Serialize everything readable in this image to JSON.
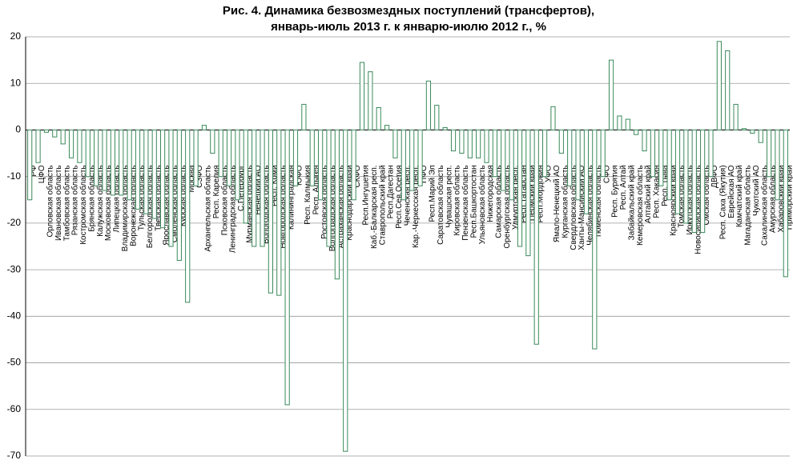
{
  "chart_data": {
    "type": "bar",
    "title": [
      "Рис. 4. Динамика безвозмездных поступлений (трансфертов),",
      "январь-июль 2013 г. к январю-июлю 2012 г., %"
    ],
    "categories": [
      "РФ",
      "ЦФО",
      "Орловская область",
      "Ивановская область",
      "Тамбовская область",
      "Рязанская область",
      "Костромская область",
      "Брянская область",
      "Калужская область",
      "Московская область",
      "Липецкая область",
      "Владимирская область",
      "Воронежская область",
      "Тульская область",
      "Белгородская область",
      "Тверская область",
      "Ярославская область",
      "Смоленская область",
      "Курская область",
      "Москва",
      "СЗФО",
      "Архангельская область",
      "Респ. Карелия",
      "Псковская область",
      "Ленинградская область",
      "С.Петербург",
      "Мурманская область",
      "Ненецкий АО",
      "Вологодская область",
      "Респ. Коми",
      "Новгородская область",
      "Калининградская",
      "ЮФО",
      "Респ. Калмыкия",
      "Респ. Адыгея",
      "Ростовская область",
      "Волгоградская область",
      "Астраханская область",
      "Краснодарский край",
      "СКФО",
      "Респ.Ингушетия",
      "Каб.-Балкарская респ.",
      "Ставропольский край",
      "Респ.Дагестан",
      "Респ.Сев.Осетия",
      "Чеченская респ.",
      "Кар.-Черкесская респ.",
      "ПФО",
      "Респ.Марий Эл",
      "Саратовская область",
      "Чувашская респ.",
      "Кировская область",
      "Пензенская область",
      "Респ.Башкортостан",
      "Ульяновская область",
      "Нижегородская",
      "Самарская область",
      "Оренбургская область",
      "Удмуртская респ.",
      "Респ.Татарстан",
      "Пермский край",
      "Респ.Мордовия",
      "УФО",
      "Ямало-Ненецкий АО",
      "Курганская область",
      "Свердловская область",
      "Ханты-Мансийский АО",
      "Челябинская область",
      "Тюменская область",
      "СФО",
      "Респ. Бурятия",
      "Респ. Алтай",
      "Забайкальский край",
      "Кемеровская область",
      "Алтайский край",
      "Респ. Хакасия",
      "Респ. Тыва",
      "Красноярский край",
      "Томская область",
      "Иркутская область",
      "Новосибирская область",
      "Омская область",
      "ДВФО",
      "Респ. Саха (Якутия)",
      "Еврейская АО",
      "Камчатский край",
      "Магаданская область",
      "Чукотский АО",
      "Сахалинская область",
      "Амурская область",
      "Хабаровский край",
      "Приморский край"
    ],
    "values": [
      -15,
      -7,
      -0.5,
      -1.5,
      -3,
      -6,
      -7,
      -10,
      -12,
      -13,
      -14,
      -14,
      -15,
      -17,
      -18,
      -19,
      -21,
      -25,
      -28,
      -37,
      -12,
      1,
      -5,
      -10,
      -12,
      -15,
      -20,
      -25,
      -25,
      -35,
      -35.5,
      -59,
      -12,
      5.5,
      -12,
      -15,
      -25,
      -32,
      -69,
      -15,
      14.5,
      12.5,
      4.8,
      1,
      -6,
      -15,
      -13,
      -12,
      10.5,
      5.3,
      0.5,
      -4.5,
      -5,
      -6,
      -6,
      -7,
      -10,
      -13,
      -15,
      -25,
      -27,
      -46,
      -10,
      5,
      -5,
      -12,
      -15,
      -18,
      -47,
      -10,
      15,
      3,
      2.3,
      -1,
      -4.5,
      -10,
      -12,
      -15,
      -18,
      -20,
      -22,
      -22,
      -10,
      19,
      17,
      5.5,
      0.3,
      -0.7,
      -2.7,
      -10,
      -15,
      -31.5
    ],
    "color": "#3a8a5a",
    "ylim": [
      -70,
      20
    ],
    "yticks": [
      -70,
      -60,
      -50,
      -40,
      -30,
      -20,
      -10,
      0,
      10,
      20
    ],
    "grid": true
  }
}
